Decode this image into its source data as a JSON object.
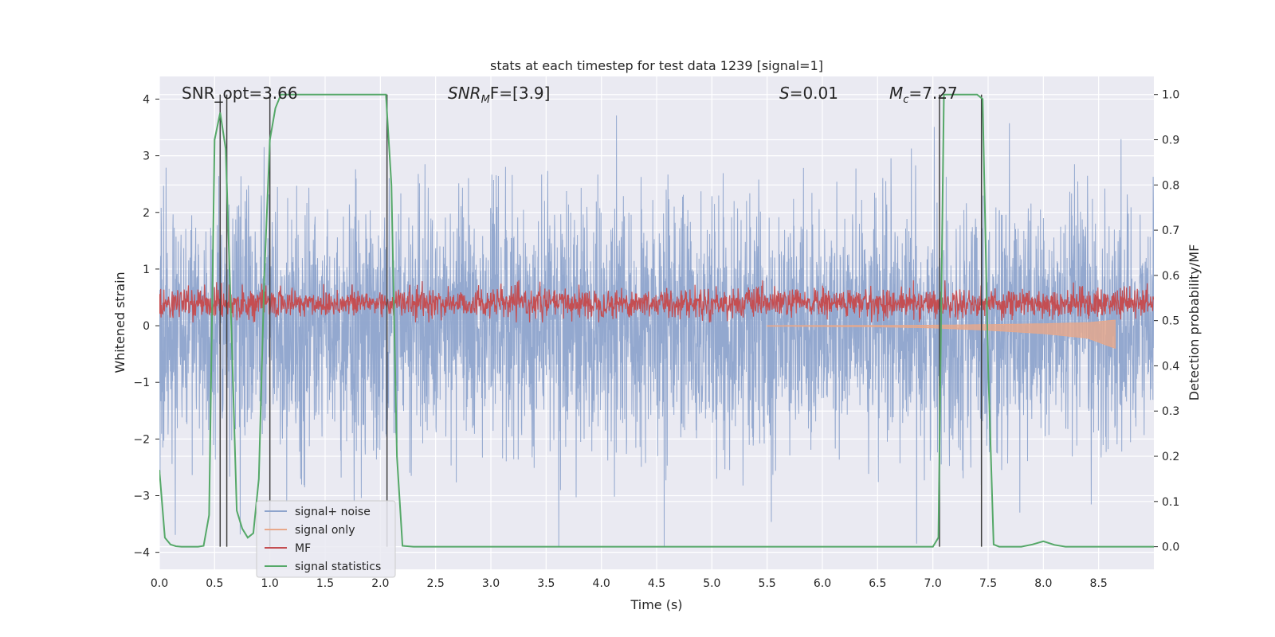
{
  "chart_data": {
    "type": "line",
    "title": "stats at each timestep for test data 1239 [signal=1]",
    "xlabel": "Time (s)",
    "ylabel": "Whitened strain",
    "ylabel_right": "Detection probability/MF",
    "xlim": [
      0,
      9.0
    ],
    "ylim": [
      -4.3,
      4.4
    ],
    "ylim_right": [
      -0.05,
      1.04
    ],
    "x_ticks": [
      0.0,
      0.5,
      1.0,
      1.5,
      2.0,
      2.5,
      3.0,
      3.5,
      4.0,
      4.5,
      5.0,
      5.5,
      6.0,
      6.5,
      7.0,
      7.5,
      8.0,
      8.5
    ],
    "x_tick_labels": [
      "0.0",
      "0.5",
      "1.0",
      "1.5",
      "2.0",
      "2.5",
      "3.0",
      "3.5",
      "4.0",
      "4.5",
      "5.0",
      "5.5",
      "6.0",
      "6.5",
      "7.0",
      "7.5",
      "8.0",
      "8.5"
    ],
    "y_ticks": [
      -4,
      -3,
      -2,
      -1,
      0,
      1,
      2,
      3,
      4
    ],
    "y_tick_labels": [
      "−4",
      "−3",
      "−2",
      "−1",
      "0",
      "1",
      "2",
      "3",
      "4"
    ],
    "y_right_ticks": [
      0.0,
      0.1,
      0.2,
      0.3,
      0.4,
      0.5,
      0.6,
      0.7,
      0.8,
      0.9,
      1.0
    ],
    "y_right_tick_labels": [
      "0.0",
      "0.1",
      "0.2",
      "0.3",
      "0.4",
      "0.5",
      "0.6",
      "0.7",
      "0.8",
      "0.9",
      "1.0"
    ],
    "grid": true,
    "legend_position": "lower-left",
    "annotations": {
      "snr_opt_label": "SNR_opt=3.66",
      "snr_mf_main": "SNR",
      "snr_mf_sub": "M",
      "snr_mf_tail": "F=[3.9]",
      "s_main": "S",
      "s_tail": "=0.01",
      "mc_main": "M",
      "mc_sub": "c",
      "mc_tail": "=7.27"
    },
    "vertical_lines_x": [
      0.55,
      0.61,
      1.0,
      2.06,
      7.06,
      7.44
    ],
    "series": [
      {
        "name": "signal+ noise",
        "color": "#8ea4cc",
        "axis": "left",
        "description_stats": {
          "mean": 0.0,
          "std": 1.0,
          "min": -3.9,
          "max": 4.0
        }
      },
      {
        "name": "signal only",
        "color": "#e8a88a",
        "axis": "left",
        "envelope": {
          "x": [
            5.5,
            6.5,
            7.0,
            7.5,
            8.0,
            8.4,
            8.65
          ],
          "amplitude": [
            0.01,
            0.02,
            0.04,
            0.08,
            0.14,
            0.22,
            0.4
          ]
        }
      },
      {
        "name": "MF",
        "color": "#c44e52",
        "axis": "left",
        "description_stats": {
          "mean": 0.4,
          "min": 0.06,
          "max": 0.8
        }
      },
      {
        "name": "signal statistics",
        "color": "#55a868",
        "axis": "right",
        "x": [
          0.0,
          0.05,
          0.1,
          0.15,
          0.2,
          0.25,
          0.3,
          0.35,
          0.4,
          0.45,
          0.5,
          0.55,
          0.6,
          0.65,
          0.7,
          0.75,
          0.8,
          0.85,
          0.9,
          0.95,
          1.0,
          1.05,
          1.1,
          1.15,
          1.2,
          1.3,
          1.5,
          1.7,
          1.9,
          2.0,
          2.05,
          2.1,
          2.15,
          2.2,
          2.3,
          2.5,
          3.0,
          4.0,
          5.0,
          6.0,
          6.5,
          7.0,
          7.05,
          7.1,
          7.15,
          7.2,
          7.3,
          7.4,
          7.45,
          7.5,
          7.55,
          7.6,
          7.7,
          7.8,
          7.9,
          8.0,
          8.05,
          8.1,
          8.2,
          8.5,
          9.0
        ],
        "y": [
          0.17,
          0.02,
          0.005,
          0.001,
          0.0,
          0.0,
          0.0,
          0.0,
          0.002,
          0.07,
          0.9,
          0.96,
          0.88,
          0.5,
          0.08,
          0.04,
          0.02,
          0.03,
          0.15,
          0.6,
          0.9,
          0.97,
          1.0,
          1.0,
          1.0,
          1.0,
          1.0,
          1.0,
          1.0,
          1.0,
          1.0,
          0.8,
          0.2,
          0.002,
          0.0,
          0.0,
          0.0,
          0.0,
          0.0,
          0.0,
          0.0,
          0.0,
          0.02,
          1.0,
          1.0,
          1.0,
          1.0,
          1.0,
          0.99,
          0.4,
          0.005,
          0.0,
          0.0,
          0.0,
          0.005,
          0.012,
          0.008,
          0.004,
          0.0,
          0.0,
          0.0
        ]
      }
    ]
  }
}
